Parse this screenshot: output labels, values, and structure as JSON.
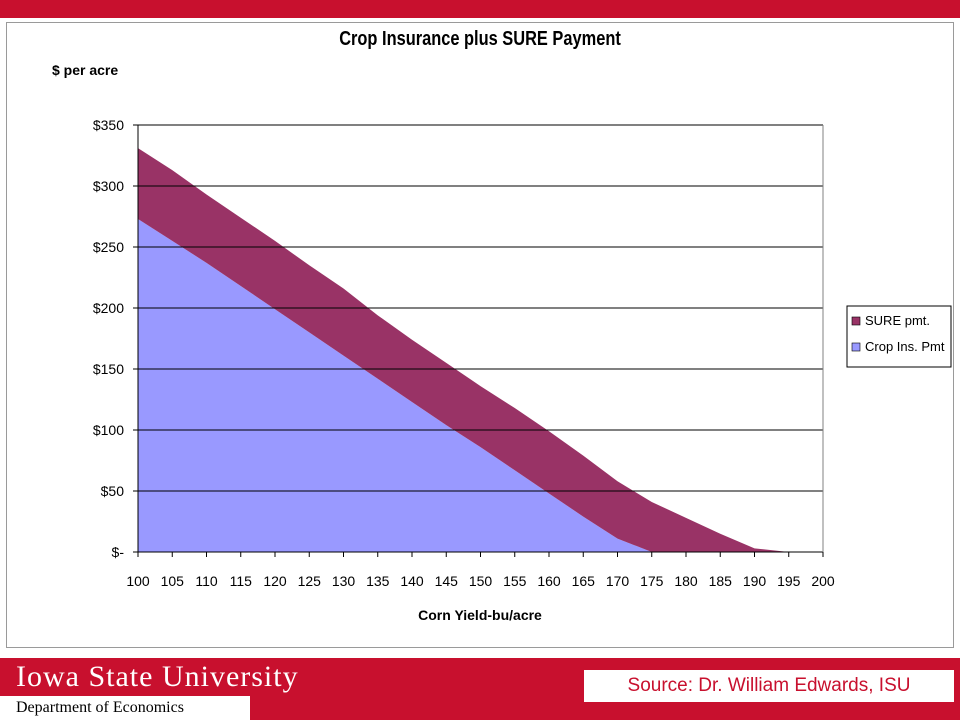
{
  "slide": {
    "university_name": "Iowa State University",
    "department": "Department of Economics",
    "source": "Source: Dr. William Edwards, ISU",
    "accent_color": "#c8102e"
  },
  "chart_data": {
    "type": "area",
    "stacked": true,
    "title": "Crop Insurance plus SURE Payment",
    "xlabel": "Corn Yield-bu/acre",
    "ylabel": "$ per acre",
    "x": [
      100,
      105,
      110,
      115,
      120,
      125,
      130,
      135,
      140,
      145,
      150,
      155,
      160,
      165,
      170,
      175,
      180,
      185,
      190,
      195,
      200
    ],
    "x_ticks": [
      "100",
      "105",
      "110",
      "115",
      "120",
      "125",
      "130",
      "135",
      "140",
      "145",
      "150",
      "155",
      "160",
      "165",
      "170",
      "175",
      "180",
      "185",
      "190",
      "195",
      "200"
    ],
    "ylim": [
      0,
      350
    ],
    "y_ticks": [
      {
        "value": 0,
        "label": "$-"
      },
      {
        "value": 50,
        "label": "$50"
      },
      {
        "value": 100,
        "label": "$100"
      },
      {
        "value": 150,
        "label": "$150"
      },
      {
        "value": 200,
        "label": "$200"
      },
      {
        "value": 250,
        "label": "$250"
      },
      {
        "value": 300,
        "label": "$300"
      },
      {
        "value": 350,
        "label": "$350"
      }
    ],
    "grid": true,
    "legend_position": "right",
    "series": [
      {
        "name": "Crop Ins. Pmt",
        "color": "#9999ff",
        "values": [
          273,
          255,
          237,
          218,
          199,
          180,
          161,
          142,
          123,
          104,
          86,
          67,
          48,
          29,
          11,
          0,
          0,
          0,
          0,
          0,
          0
        ]
      },
      {
        "name": "SURE pmt.",
        "color": "#993366",
        "values": [
          58,
          58,
          56,
          56,
          56,
          55,
          55,
          52,
          51,
          51,
          50,
          51,
          51,
          50,
          47,
          41,
          28,
          15,
          3,
          0,
          0
        ]
      }
    ],
    "legend_order": [
      1,
      0
    ]
  }
}
